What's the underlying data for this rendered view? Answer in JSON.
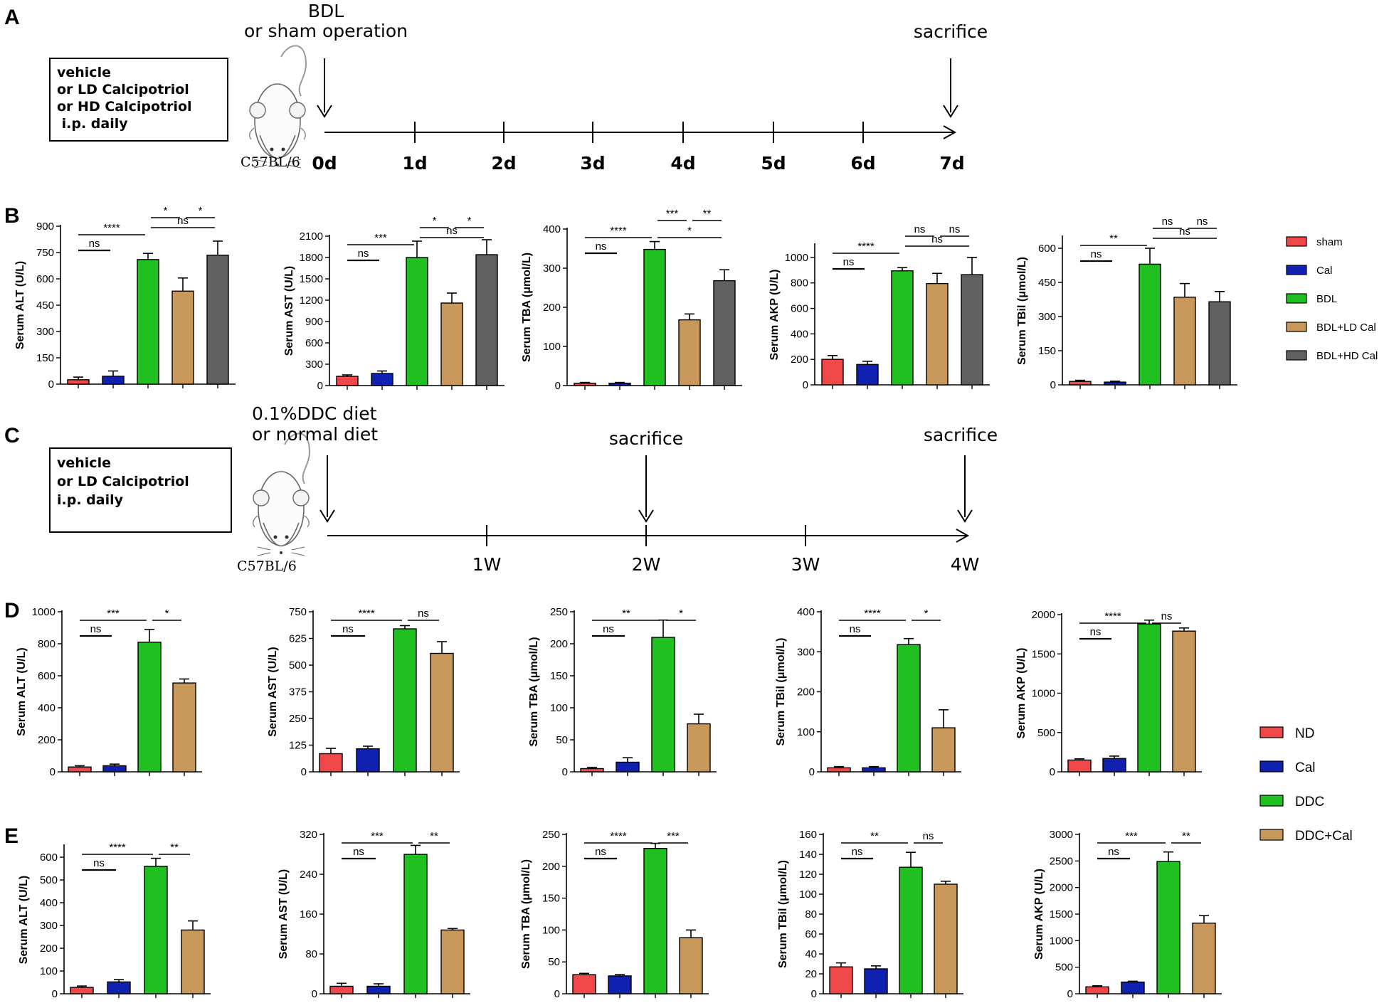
{
  "panel_labels": {
    "a": "A",
    "b": "B",
    "c": "C",
    "d": "D",
    "e": "E"
  },
  "timeline_a": {
    "box_lines": [
      "vehicle",
      "or LD Calcipotriol",
      "or HD Calcipotriol",
      " i.p. daily"
    ],
    "strain": "C57BL/6",
    "start_label_1": "BDL",
    "start_label_2": "or sham operation",
    "end_label": "sacrifice",
    "days": [
      "0d",
      "1d",
      "2d",
      "3d",
      "4d",
      "5d",
      "6d",
      "7d"
    ]
  },
  "timeline_c": {
    "box_lines": [
      "vehicle",
      "or LD Calcipotriol",
      "i.p. daily"
    ],
    "strain": "C57BL/6",
    "start_label_1": "0.1%DDC diet",
    "start_label_2": "or normal diet",
    "mid_label": "sacrifice",
    "end_label": "sacrifice",
    "weeks": [
      "1W",
      "2W",
      "3W",
      "4W"
    ]
  },
  "legends": {
    "b": [
      {
        "label": "sham",
        "color": "#f04848"
      },
      {
        "label": "Cal",
        "color": "#1020b0"
      },
      {
        "label": "BDL",
        "color": "#20c020"
      },
      {
        "label": "BDL+LD Cal",
        "color": "#c8985a"
      },
      {
        "label": "BDL+HD Cal",
        "color": "#606060"
      }
    ],
    "de": [
      {
        "label": "ND",
        "color": "#f04848"
      },
      {
        "label": "Cal",
        "color": "#1020b0"
      },
      {
        "label": "DDC",
        "color": "#20c020"
      },
      {
        "label": "DDC+Cal",
        "color": "#c8985a"
      }
    ]
  },
  "chart_data": [
    {
      "panel": "B",
      "type": "bar",
      "ylabel": "Serum ALT (U/L)",
      "ylim": [
        0,
        900
      ],
      "yticks": [
        0,
        150,
        300,
        450,
        600,
        750,
        900
      ],
      "categories": [
        "sham",
        "Cal",
        "BDL",
        "BDL+LD Cal",
        "BDL+HD Cal"
      ],
      "values": [
        25,
        45,
        710,
        530,
        735
      ],
      "errors": [
        15,
        30,
        35,
        75,
        80
      ],
      "colors": [
        "#f04848",
        "#1020b0",
        "#20c020",
        "#c8985a",
        "#606060"
      ],
      "comparisons": [
        {
          "from": 0,
          "to": 1,
          "label": "ns",
          "level": 0
        },
        {
          "from": 0,
          "to": 2,
          "label": "****",
          "level": 1
        },
        {
          "from": 2,
          "to": 4,
          "label": "ns",
          "level": 2
        },
        {
          "from": 2,
          "to": 3,
          "label": "*",
          "level": 3
        },
        {
          "from": 3,
          "to": 4,
          "label": "*",
          "level": 3
        }
      ]
    },
    {
      "panel": "B",
      "type": "bar",
      "ylabel": "Serum AST (U/L)",
      "ylim": [
        0,
        2100
      ],
      "yticks": [
        0,
        300,
        600,
        900,
        1200,
        1500,
        1800,
        2100
      ],
      "categories": [
        "sham",
        "Cal",
        "BDL",
        "BDL+LD Cal",
        "BDL+HD Cal"
      ],
      "values": [
        130,
        170,
        1800,
        1160,
        1840
      ],
      "errors": [
        20,
        35,
        230,
        140,
        210
      ],
      "colors": [
        "#f04848",
        "#1020b0",
        "#20c020",
        "#c8985a",
        "#606060"
      ],
      "comparisons": [
        {
          "from": 0,
          "to": 1,
          "label": "ns",
          "level": 0
        },
        {
          "from": 0,
          "to": 2,
          "label": "***",
          "level": 1
        },
        {
          "from": 2,
          "to": 4,
          "label": "ns",
          "level": 2
        },
        {
          "from": 2,
          "to": 3,
          "label": "*",
          "level": 3
        },
        {
          "from": 3,
          "to": 4,
          "label": "*",
          "level": 3
        }
      ]
    },
    {
      "panel": "B",
      "type": "bar",
      "ylabel": "Serum TBA (μmol/L)",
      "ylim": [
        0,
        400
      ],
      "yticks": [
        0,
        100,
        200,
        300,
        400
      ],
      "categories": [
        "sham",
        "Cal",
        "BDL",
        "BDL+LD Cal",
        "BDL+HD Cal"
      ],
      "values": [
        6,
        6,
        348,
        168,
        268
      ],
      "errors": [
        2,
        2,
        20,
        15,
        28
      ],
      "colors": [
        "#f04848",
        "#1020b0",
        "#20c020",
        "#c8985a",
        "#606060"
      ],
      "comparisons": [
        {
          "from": 0,
          "to": 1,
          "label": "ns",
          "level": 0
        },
        {
          "from": 0,
          "to": 2,
          "label": "****",
          "level": 1
        },
        {
          "from": 2,
          "to": 4,
          "label": "*",
          "level": 1
        },
        {
          "from": 2,
          "to": 3,
          "label": "***",
          "level": 3
        },
        {
          "from": 3,
          "to": 4,
          "label": "**",
          "level": 3
        }
      ]
    },
    {
      "panel": "B",
      "type": "bar",
      "ylabel": "Serum AKP (U/L)",
      "ylim": [
        0,
        1100
      ],
      "yticks": [
        0,
        200,
        400,
        600,
        800,
        1000
      ],
      "categories": [
        "sham",
        "Cal",
        "BDL",
        "BDL+LD Cal",
        "BDL+HD Cal"
      ],
      "values": [
        200,
        160,
        895,
        795,
        865
      ],
      "errors": [
        30,
        25,
        25,
        80,
        135
      ],
      "colors": [
        "#f04848",
        "#1020b0",
        "#20c020",
        "#c8985a",
        "#606060"
      ],
      "comparisons": [
        {
          "from": 0,
          "to": 1,
          "label": "ns",
          "level": 0
        },
        {
          "from": 0,
          "to": 2,
          "label": "****",
          "level": 1
        },
        {
          "from": 2,
          "to": 4,
          "label": "ns",
          "level": 2
        },
        {
          "from": 2,
          "to": 3,
          "label": "ns",
          "level": 3
        },
        {
          "from": 3,
          "to": 4,
          "label": "ns",
          "level": 3
        }
      ]
    },
    {
      "panel": "B",
      "type": "bar",
      "ylabel": "Serum TBil (μmol/L)",
      "ylim": [
        0,
        650
      ],
      "yticks": [
        0,
        150,
        300,
        450,
        600
      ],
      "categories": [
        "sham",
        "Cal",
        "BDL",
        "BDL+LD Cal",
        "BDL+HD Cal"
      ],
      "values": [
        15,
        12,
        530,
        385,
        365
      ],
      "errors": [
        5,
        4,
        70,
        60,
        45
      ],
      "colors": [
        "#f04848",
        "#1020b0",
        "#20c020",
        "#c8985a",
        "#606060"
      ],
      "comparisons": [
        {
          "from": 0,
          "to": 1,
          "label": "ns",
          "level": 0
        },
        {
          "from": 0,
          "to": 2,
          "label": "**",
          "level": 1
        },
        {
          "from": 2,
          "to": 4,
          "label": "ns",
          "level": 2
        },
        {
          "from": 2,
          "to": 3,
          "label": "ns",
          "level": 3
        },
        {
          "from": 3,
          "to": 4,
          "label": "ns",
          "level": 3
        }
      ]
    },
    {
      "panel": "D",
      "type": "bar",
      "ylabel": "Serum ALT (U/L)",
      "ylim": [
        0,
        1000
      ],
      "yticks": [
        0,
        200,
        400,
        600,
        800,
        1000
      ],
      "categories": [
        "ND",
        "Cal",
        "DDC",
        "DDC+Cal"
      ],
      "values": [
        30,
        38,
        810,
        555
      ],
      "errors": [
        8,
        10,
        80,
        25
      ],
      "colors": [
        "#f04848",
        "#1020b0",
        "#20c020",
        "#c8985a"
      ],
      "comparisons": [
        {
          "from": 0,
          "to": 1,
          "label": "ns",
          "level": 0
        },
        {
          "from": 0,
          "to": 2,
          "label": "***",
          "level": 1
        },
        {
          "from": 2,
          "to": 3,
          "label": "*",
          "level": 1
        }
      ]
    },
    {
      "panel": "D",
      "type": "bar",
      "ylabel": "Serum AST (U/L)",
      "ylim": [
        0,
        750
      ],
      "yticks": [
        0,
        125,
        250,
        375,
        500,
        625,
        750
      ],
      "categories": [
        "ND",
        "Cal",
        "DDC",
        "DDC+Cal"
      ],
      "values": [
        85,
        108,
        670,
        555
      ],
      "errors": [
        25,
        12,
        15,
        55
      ],
      "colors": [
        "#f04848",
        "#1020b0",
        "#20c020",
        "#c8985a"
      ],
      "comparisons": [
        {
          "from": 0,
          "to": 1,
          "label": "ns",
          "level": 0
        },
        {
          "from": 0,
          "to": 2,
          "label": "****",
          "level": 1
        },
        {
          "from": 2,
          "to": 3,
          "label": "ns",
          "level": 1
        }
      ]
    },
    {
      "panel": "D",
      "type": "bar",
      "ylabel": "Serum TBA (μmol/L)",
      "ylim": [
        0,
        250
      ],
      "yticks": [
        0,
        50,
        100,
        150,
        200,
        250
      ],
      "categories": [
        "ND",
        "Cal",
        "DDC",
        "DDC+Cal"
      ],
      "values": [
        5,
        15,
        210,
        75
      ],
      "errors": [
        2,
        7,
        27,
        15
      ],
      "colors": [
        "#f04848",
        "#1020b0",
        "#20c020",
        "#c8985a"
      ],
      "comparisons": [
        {
          "from": 0,
          "to": 1,
          "label": "ns",
          "level": 0
        },
        {
          "from": 0,
          "to": 2,
          "label": "**",
          "level": 1
        },
        {
          "from": 2,
          "to": 3,
          "label": "*",
          "level": 1
        }
      ]
    },
    {
      "panel": "D",
      "type": "bar",
      "ylabel": "Serum TBil (μmol/L)",
      "ylim": [
        0,
        400
      ],
      "yticks": [
        0,
        100,
        200,
        300,
        400
      ],
      "categories": [
        "ND",
        "Cal",
        "DDC",
        "DDC+Cal"
      ],
      "values": [
        10,
        10,
        318,
        110
      ],
      "errors": [
        3,
        3,
        15,
        45
      ],
      "colors": [
        "#f04848",
        "#1020b0",
        "#20c020",
        "#c8985a"
      ],
      "comparisons": [
        {
          "from": 0,
          "to": 1,
          "label": "ns",
          "level": 0
        },
        {
          "from": 0,
          "to": 2,
          "label": "****",
          "level": 1
        },
        {
          "from": 2,
          "to": 3,
          "label": "*",
          "level": 1
        }
      ]
    },
    {
      "panel": "D",
      "type": "bar",
      "ylabel": "Serum AKP (U/L)",
      "ylim": [
        0,
        2000
      ],
      "yticks": [
        0,
        500,
        1000,
        1500,
        2000
      ],
      "categories": [
        "ND",
        "Cal",
        "DDC",
        "DDC+Cal"
      ],
      "values": [
        150,
        170,
        1880,
        1790
      ],
      "errors": [
        15,
        30,
        50,
        40
      ],
      "colors": [
        "#f04848",
        "#1020b0",
        "#20c020",
        "#c8985a"
      ],
      "comparisons": [
        {
          "from": 0,
          "to": 1,
          "label": "ns",
          "level": 0
        },
        {
          "from": 0,
          "to": 2,
          "label": "****",
          "level": 1
        },
        {
          "from": 2,
          "to": 3,
          "label": "ns",
          "level": 1
        }
      ]
    },
    {
      "panel": "E",
      "type": "bar",
      "ylabel": "Serum ALT (U/L)",
      "ylim": [
        0,
        650
      ],
      "yticks": [
        0,
        100,
        200,
        300,
        400,
        500,
        600
      ],
      "categories": [
        "ND",
        "Cal",
        "DDC",
        "DDC+Cal"
      ],
      "values": [
        28,
        52,
        560,
        280
      ],
      "errors": [
        6,
        10,
        35,
        40
      ],
      "colors": [
        "#f04848",
        "#1020b0",
        "#20c020",
        "#c8985a"
      ],
      "comparisons": [
        {
          "from": 0,
          "to": 1,
          "label": "ns",
          "level": 0
        },
        {
          "from": 0,
          "to": 2,
          "label": "****",
          "level": 1
        },
        {
          "from": 2,
          "to": 3,
          "label": "**",
          "level": 1
        }
      ]
    },
    {
      "panel": "E",
      "type": "bar",
      "ylabel": "Serum AST (U/L)",
      "ylim": [
        0,
        320
      ],
      "yticks": [
        0,
        80,
        160,
        240,
        320
      ],
      "categories": [
        "ND",
        "Cal",
        "DDC",
        "DDC+Cal"
      ],
      "values": [
        15,
        15,
        280,
        128
      ],
      "errors": [
        6,
        5,
        18,
        3
      ],
      "colors": [
        "#f04848",
        "#1020b0",
        "#20c020",
        "#c8985a"
      ],
      "comparisons": [
        {
          "from": 0,
          "to": 1,
          "label": "ns",
          "level": 0
        },
        {
          "from": 0,
          "to": 2,
          "label": "***",
          "level": 1
        },
        {
          "from": 2,
          "to": 3,
          "label": "**",
          "level": 1
        }
      ]
    },
    {
      "panel": "E",
      "type": "bar",
      "ylabel": "Serum TBA (μmol/L)",
      "ylim": [
        0,
        250
      ],
      "yticks": [
        0,
        50,
        100,
        150,
        200,
        250
      ],
      "categories": [
        "ND",
        "Cal",
        "DDC",
        "DDC+Cal"
      ],
      "values": [
        30,
        28,
        228,
        88
      ],
      "errors": [
        2,
        2,
        8,
        12
      ],
      "colors": [
        "#f04848",
        "#1020b0",
        "#20c020",
        "#c8985a"
      ],
      "comparisons": [
        {
          "from": 0,
          "to": 1,
          "label": "ns",
          "level": 0
        },
        {
          "from": 0,
          "to": 2,
          "label": "****",
          "level": 1
        },
        {
          "from": 2,
          "to": 3,
          "label": "***",
          "level": 1
        }
      ]
    },
    {
      "panel": "E",
      "type": "bar",
      "ylabel": "Serum TBil (μmol/L)",
      "ylim": [
        0,
        160
      ],
      "yticks": [
        0,
        20,
        40,
        60,
        80,
        100,
        120,
        140,
        160
      ],
      "categories": [
        "ND",
        "Cal",
        "DDC",
        "DDC+Cal"
      ],
      "values": [
        27,
        25,
        127,
        110
      ],
      "errors": [
        4,
        3,
        15,
        3
      ],
      "colors": [
        "#f04848",
        "#1020b0",
        "#20c020",
        "#c8985a"
      ],
      "comparisons": [
        {
          "from": 0,
          "to": 1,
          "label": "ns",
          "level": 0
        },
        {
          "from": 0,
          "to": 2,
          "label": "**",
          "level": 1
        },
        {
          "from": 2,
          "to": 3,
          "label": "ns",
          "level": 1
        }
      ]
    },
    {
      "panel": "E",
      "type": "bar",
      "ylabel": "Serum AKP (U/L)",
      "ylim": [
        0,
        3000
      ],
      "yticks": [
        0,
        500,
        1000,
        1500,
        2000,
        2500,
        3000
      ],
      "categories": [
        "ND",
        "Cal",
        "DDC",
        "DDC+Cal"
      ],
      "values": [
        130,
        220,
        2490,
        1330
      ],
      "errors": [
        20,
        15,
        180,
        140
      ],
      "colors": [
        "#f04848",
        "#1020b0",
        "#20c020",
        "#c8985a"
      ],
      "comparisons": [
        {
          "from": 0,
          "to": 1,
          "label": "ns",
          "level": 0
        },
        {
          "from": 0,
          "to": 2,
          "label": "***",
          "level": 1
        },
        {
          "from": 2,
          "to": 3,
          "label": "**",
          "level": 1
        }
      ]
    }
  ]
}
